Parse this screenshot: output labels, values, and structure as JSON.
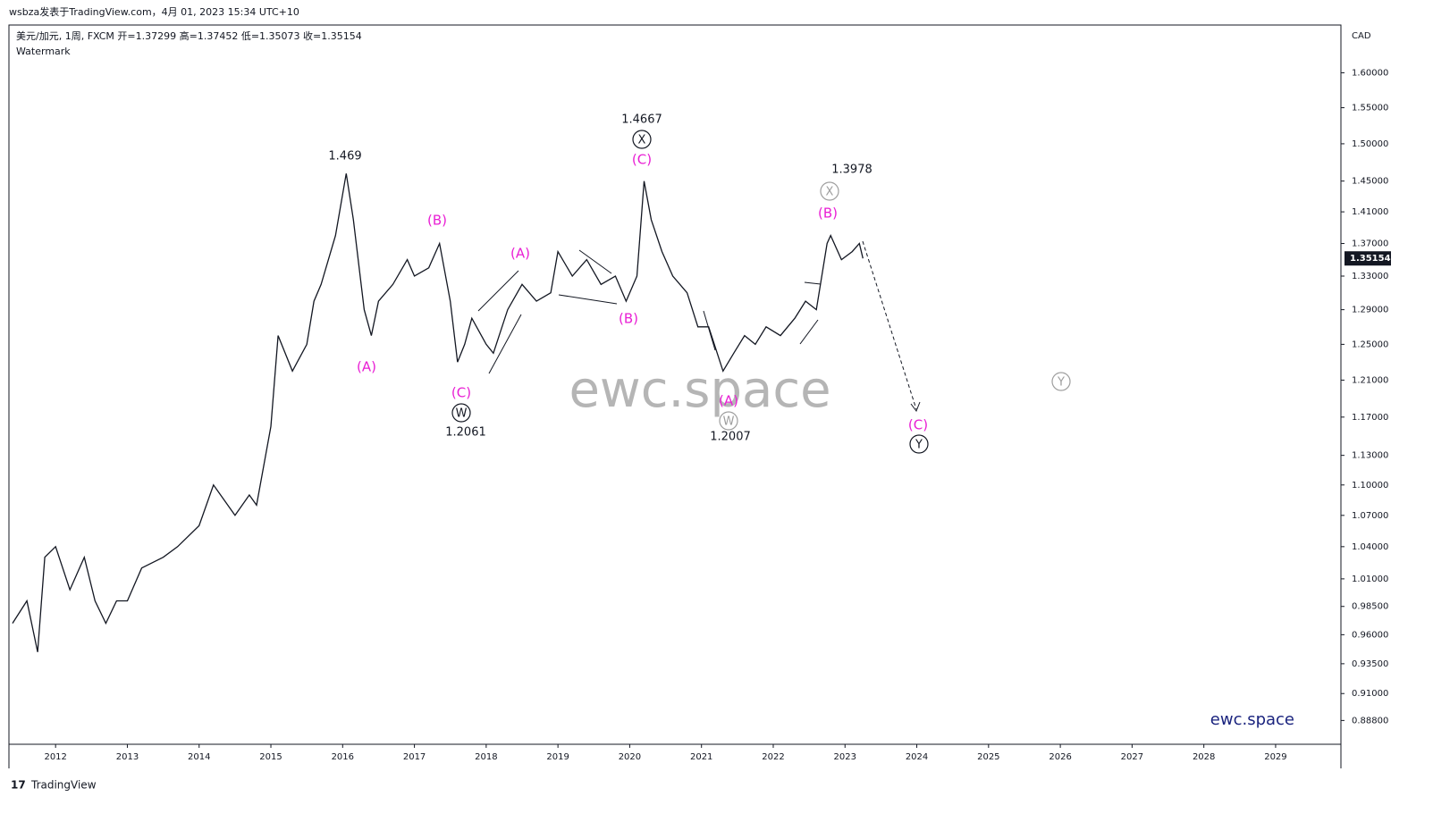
{
  "header": {
    "byline": "wsbza发表于TradingView.com，4月 01, 2023 15:34 UTC+10",
    "symbol": "美元/加元, 1周, FXCM  开=1.37299  高=1.37452  低=1.35073  收=1.35154",
    "subtitle": "Watermark",
    "currency": "CAD",
    "footer": "TradingView"
  },
  "chart_data": {
    "type": "line",
    "color": "#131722",
    "log_scale": true,
    "watermark": "ewc.space",
    "brand": "ewc.space",
    "x": [
      2011.4,
      2011.6,
      2011.75,
      2011.85,
      2012.0,
      2012.2,
      2012.4,
      2012.55,
      2012.7,
      2012.85,
      2013.0,
      2013.2,
      2013.5,
      2013.7,
      2014.0,
      2014.2,
      2014.5,
      2014.7,
      2014.8,
      2015.0,
      2015.1,
      2015.3,
      2015.5,
      2015.6,
      2015.7,
      2015.9,
      2016.05,
      2016.15,
      2016.3,
      2016.4,
      2016.5,
      2016.7,
      2016.9,
      2017.0,
      2017.2,
      2017.35,
      2017.5,
      2017.6,
      2017.7,
      2017.8,
      2018.0,
      2018.1,
      2018.3,
      2018.5,
      2018.7,
      2018.9,
      2019.0,
      2019.2,
      2019.4,
      2019.6,
      2019.8,
      2019.95,
      2020.1,
      2020.2,
      2020.3,
      2020.45,
      2020.6,
      2020.8,
      2020.95,
      2021.1,
      2021.3,
      2021.45,
      2021.6,
      2021.75,
      2021.9,
      2022.1,
      2022.3,
      2022.45,
      2022.6,
      2022.75,
      2022.8,
      2022.95,
      2023.1,
      2023.2,
      2023.25
    ],
    "values": [
      0.97,
      0.99,
      0.945,
      1.03,
      1.04,
      1.0,
      1.03,
      0.99,
      0.97,
      0.99,
      0.99,
      1.02,
      1.03,
      1.04,
      1.06,
      1.1,
      1.07,
      1.09,
      1.08,
      1.16,
      1.26,
      1.22,
      1.25,
      1.3,
      1.32,
      1.38,
      1.46,
      1.4,
      1.29,
      1.26,
      1.3,
      1.32,
      1.35,
      1.33,
      1.34,
      1.37,
      1.3,
      1.23,
      1.25,
      1.28,
      1.25,
      1.24,
      1.29,
      1.32,
      1.3,
      1.31,
      1.36,
      1.33,
      1.35,
      1.32,
      1.33,
      1.3,
      1.33,
      1.45,
      1.4,
      1.36,
      1.33,
      1.31,
      1.27,
      1.27,
      1.22,
      1.24,
      1.26,
      1.25,
      1.27,
      1.26,
      1.28,
      1.3,
      1.29,
      1.37,
      1.38,
      1.35,
      1.36,
      1.37,
      1.35154
    ],
    "xlim": [
      2011.35,
      2029.91
    ],
    "xticks": [
      2012,
      2013,
      2014,
      2015,
      2016,
      2017,
      2018,
      2019,
      2020,
      2021,
      2022,
      2023,
      2024,
      2025,
      2026,
      2027,
      2028,
      2029
    ],
    "ylim": [
      0.869,
      1.671
    ],
    "yticks": [
      {
        "value": 1.6,
        "label": "1.60000"
      },
      {
        "value": 1.55,
        "label": "1.55000"
      },
      {
        "value": 1.5,
        "label": "1.50000"
      },
      {
        "value": 1.45,
        "label": "1.45000"
      },
      {
        "value": 1.41,
        "label": "1.41000"
      },
      {
        "value": 1.37,
        "label": "1.37000"
      },
      {
        "value": 1.33,
        "label": "1.33000"
      },
      {
        "value": 1.29,
        "label": "1.29000"
      },
      {
        "value": 1.25,
        "label": "1.25000"
      },
      {
        "value": 1.21,
        "label": "1.21000"
      },
      {
        "value": 1.17,
        "label": "1.17000"
      },
      {
        "value": 1.13,
        "label": "1.13000"
      },
      {
        "value": 1.1,
        "label": "1.10000"
      },
      {
        "value": 1.07,
        "label": "1.07000"
      },
      {
        "value": 1.04,
        "label": "1.04000"
      },
      {
        "value": 1.01,
        "label": "1.01000"
      },
      {
        "value": 0.985,
        "label": "0.98500"
      },
      {
        "value": 0.96,
        "label": "0.96000"
      },
      {
        "value": 0.935,
        "label": "0.93500"
      },
      {
        "value": 0.91,
        "label": "0.91000"
      },
      {
        "value": 0.888,
        "label": "0.88800"
      }
    ],
    "annotations": [
      "1.469",
      "(A)",
      "(B)",
      "(C)",
      "W",
      "1.2061",
      "(A)",
      "(B)",
      "1.4667",
      "X",
      "(C)",
      "(A)",
      "W",
      "1.2007",
      "1.3978",
      "X",
      "(B)",
      "(C)",
      "Y",
      "Y"
    ]
  }
}
